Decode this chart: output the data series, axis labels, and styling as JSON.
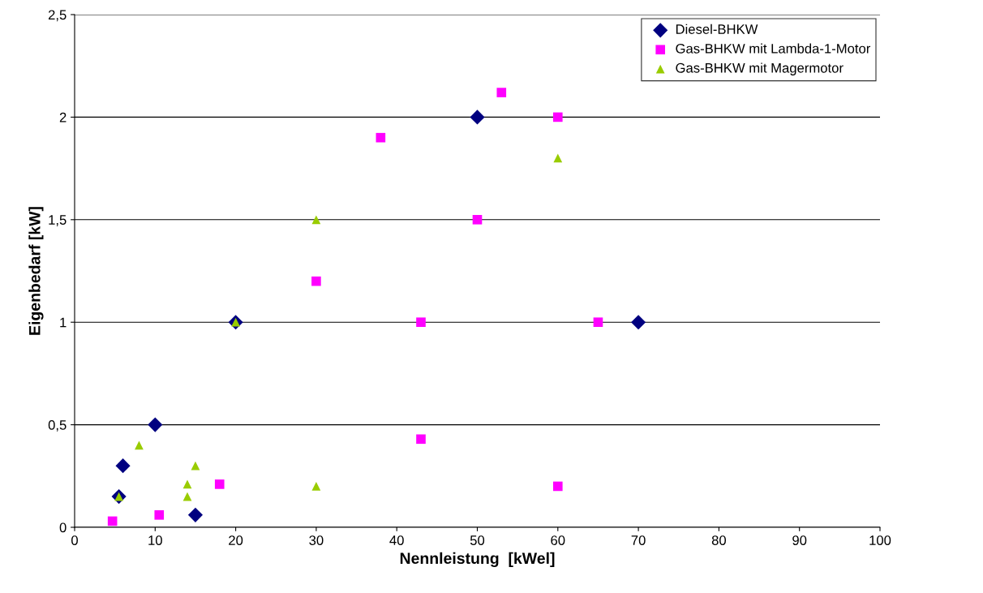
{
  "chart_data": {
    "type": "scatter",
    "xlabel": "Nennleistung  [kWel]",
    "ylabel": "Eigenbedarf [kW]",
    "xlim": [
      0,
      100
    ],
    "xticks": [
      0,
      10,
      20,
      30,
      40,
      50,
      60,
      70,
      80,
      90,
      100
    ],
    "ylim": [
      0,
      2.5
    ],
    "yticks": [
      0,
      {
        "value": 0.5,
        "label": "0,5"
      },
      1,
      {
        "value": 1.5,
        "label": "1,5"
      },
      2,
      {
        "value": 2.5,
        "label": "2,5"
      }
    ],
    "grid": "y",
    "legend": "top right",
    "series": [
      {
        "name": "Diesel-BHKW",
        "color": "#000080",
        "marker": "diamond",
        "x": [
          5.5,
          6,
          10,
          15,
          20,
          50,
          70
        ],
        "values": [
          0.15,
          0.3,
          0.5,
          0.06,
          1.0,
          2.0,
          1.0
        ]
      },
      {
        "name": "Gas-BHKW mit Lambda-1-Motor",
        "color": "#ff00ff",
        "marker": "square",
        "x": [
          4.7,
          10.5,
          18,
          30,
          38,
          43,
          43,
          50,
          53,
          60,
          60,
          65
        ],
        "values": [
          0.03,
          0.06,
          0.21,
          1.2,
          1.9,
          1.0,
          0.43,
          1.5,
          2.12,
          2.0,
          0.2,
          1.0
        ]
      },
      {
        "name": "Gas-BHKW mit Magermotor",
        "color": "#99cc00",
        "marker": "triangle",
        "x": [
          5.5,
          8,
          14,
          14,
          15,
          20,
          30,
          30,
          60
        ],
        "values": [
          0.15,
          0.4,
          0.21,
          0.15,
          0.3,
          1.0,
          1.5,
          0.2,
          1.8
        ]
      }
    ]
  }
}
